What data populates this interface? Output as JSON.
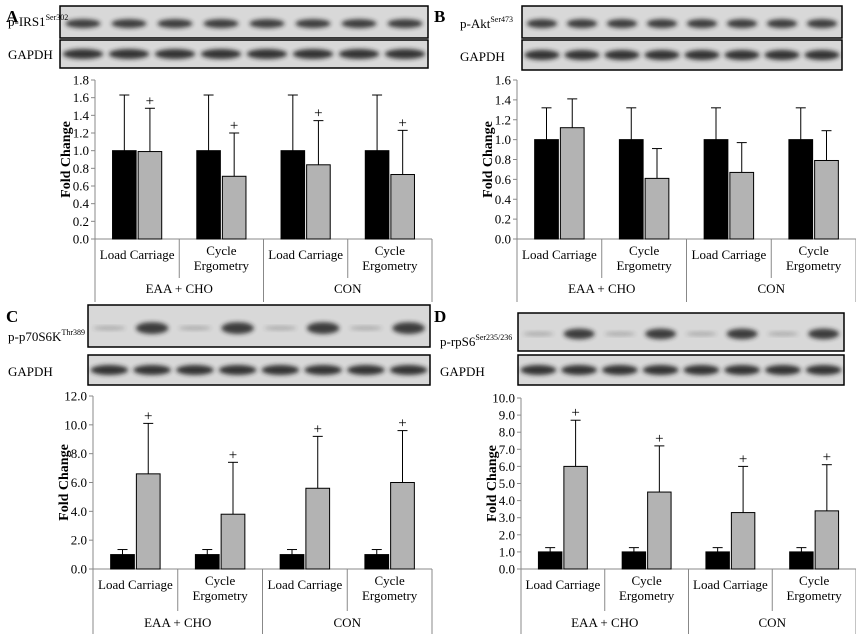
{
  "colors": {
    "baseline": "#000000",
    "treatment": "#b3b3b3",
    "blot_bg": "#d8d8d8",
    "band": "#222222"
  },
  "chart_data": [
    {
      "type": "bar",
      "panel": "A",
      "blot_label": "p-IRS1",
      "blot_sup": "Ser302",
      "gapdh_label": "GAPDH",
      "ylabel": "Fold Change",
      "ylim": [
        0,
        1.8
      ],
      "yticks": [
        "0.0",
        "0.2",
        "0.4",
        "0.6",
        "0.8",
        "1.0",
        "1.2",
        "1.4",
        "1.6",
        "1.8"
      ],
      "categories": [
        "Load Carriage",
        "Cycle Ergometry",
        "Load Carriage",
        "Cycle Ergometry"
      ],
      "groups": [
        "EAA + CHO",
        "CON"
      ],
      "series": [
        {
          "values": [
            1.0,
            1.0,
            1.0,
            1.0
          ],
          "errors": [
            0.63,
            0.63,
            0.63,
            0.63
          ]
        },
        {
          "values": [
            0.99,
            0.71,
            0.84,
            0.73
          ],
          "errors": [
            0.49,
            0.49,
            0.5,
            0.5
          ]
        }
      ],
      "annotations": [
        "+",
        "+",
        "+",
        "+"
      ]
    },
    {
      "type": "bar",
      "panel": "B",
      "blot_label": "p-Akt",
      "blot_sup": "Ser473",
      "gapdh_label": "GAPDH",
      "ylabel": "Fold Change",
      "ylim": [
        0,
        1.6
      ],
      "yticks": [
        "0.0",
        "0.2",
        "0.4",
        "0.6",
        "0.8",
        "1.0",
        "1.2",
        "1.4",
        "1.6"
      ],
      "categories": [
        "Load Carriage",
        "Cycle Ergometry",
        "Load Carriage",
        "Cycle Ergometry"
      ],
      "groups": [
        "EAA + CHO",
        "CON"
      ],
      "series": [
        {
          "values": [
            1.0,
            1.0,
            1.0,
            1.0
          ],
          "errors": [
            0.32,
            0.32,
            0.32,
            0.32
          ]
        },
        {
          "values": [
            1.12,
            0.61,
            0.67,
            0.79
          ],
          "errors": [
            0.29,
            0.3,
            0.3,
            0.3
          ]
        }
      ],
      "annotations": [
        "",
        "",
        "",
        ""
      ]
    },
    {
      "type": "bar",
      "panel": "C",
      "blot_label": "p-p70S6K",
      "blot_sup": "Thr389",
      "gapdh_label": "GAPDH",
      "ylabel": "Fold Change",
      "ylim": [
        0,
        12
      ],
      "yticks": [
        "0.0",
        "2.0",
        "4.0",
        "6.0",
        "8.0",
        "10.0",
        "12.0"
      ],
      "categories": [
        "Load Carriage",
        "Cycle Ergometry",
        "Load Carriage",
        "Cycle Ergometry"
      ],
      "groups": [
        "EAA + CHO",
        "CON"
      ],
      "series": [
        {
          "values": [
            1.0,
            1.0,
            1.0,
            1.0
          ],
          "errors": [
            0.35,
            0.35,
            0.35,
            0.35
          ]
        },
        {
          "values": [
            6.6,
            3.8,
            5.6,
            6.0
          ],
          "errors": [
            3.5,
            3.6,
            3.6,
            3.6
          ]
        }
      ],
      "annotations": [
        "+",
        "+",
        "+",
        "+"
      ]
    },
    {
      "type": "bar",
      "panel": "D",
      "blot_label": "p-rpS6",
      "blot_sup": "Ser235/236",
      "gapdh_label": "GAPDH",
      "ylabel": "Fold Change",
      "ylim": [
        0,
        10
      ],
      "yticks": [
        "0.0",
        "1.0",
        "2.0",
        "3.0",
        "4.0",
        "5.0",
        "6.0",
        "7.0",
        "8.0",
        "9.0",
        "10.0"
      ],
      "categories": [
        "Load Carriage",
        "Cycle Ergometry",
        "Load Carriage",
        "Cycle Ergometry"
      ],
      "groups": [
        "EAA + CHO",
        "CON"
      ],
      "series": [
        {
          "values": [
            1.0,
            1.0,
            1.0,
            1.0
          ],
          "errors": [
            0.25,
            0.25,
            0.25,
            0.25
          ]
        },
        {
          "values": [
            6.0,
            4.5,
            3.3,
            3.4
          ],
          "errors": [
            2.7,
            2.7,
            2.7,
            2.7
          ]
        }
      ],
      "annotations": [
        "+",
        "+",
        "+",
        "+"
      ]
    }
  ]
}
